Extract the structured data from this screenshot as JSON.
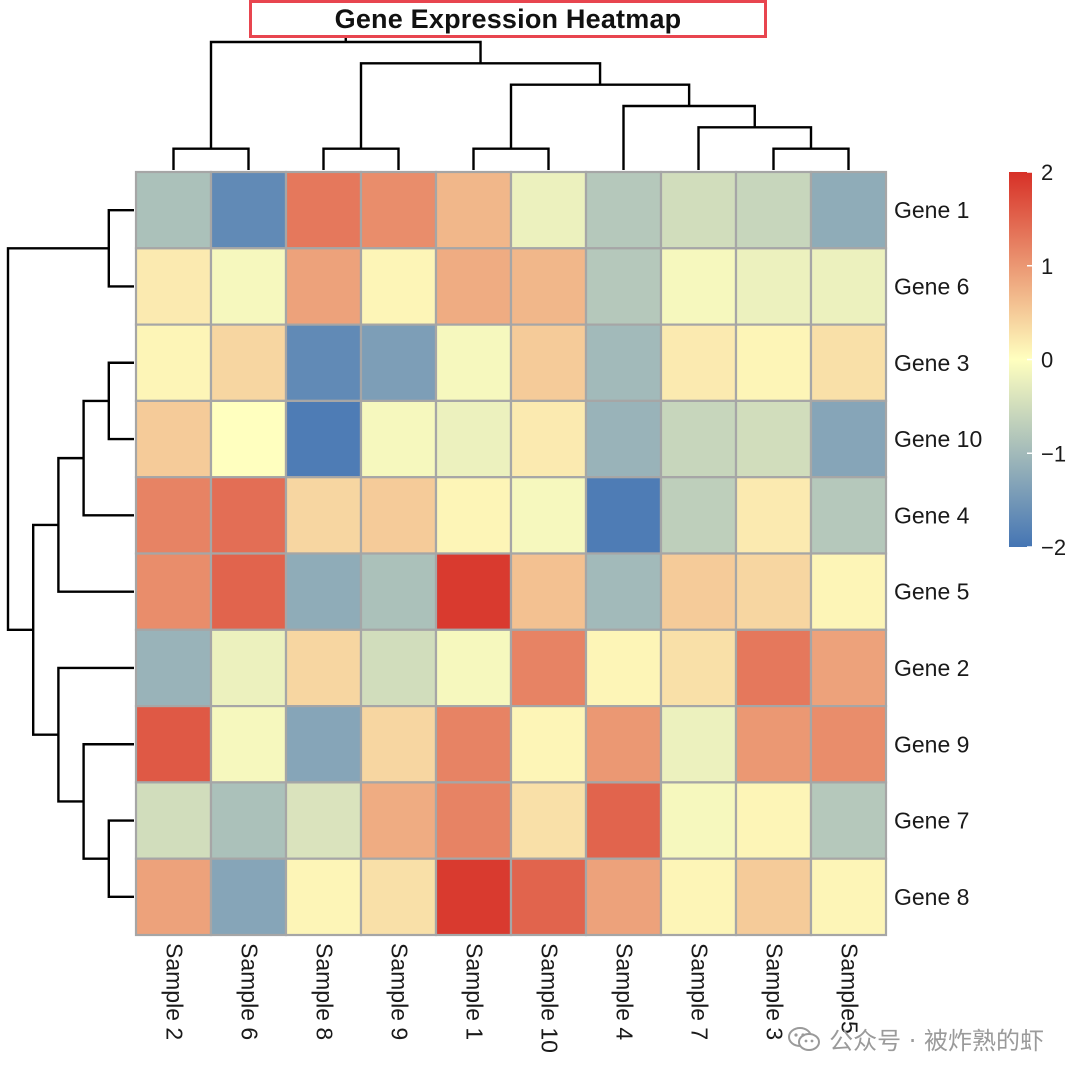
{
  "title": "Gene Expression Heatmap",
  "watermark": "公众号 · 被炸熟的虾",
  "chart_data": {
    "type": "heatmap",
    "title": "Gene Expression Heatmap",
    "columns": [
      "Sample 2",
      "Sample 6",
      "Sample 8",
      "Sample 9",
      "Sample 1",
      "Sample 10",
      "Sample 4",
      "Sample 7",
      "Sample 3",
      "Sample5"
    ],
    "rows": [
      "Gene 1",
      "Gene 6",
      "Gene 3",
      "Gene 10",
      "Gene 4",
      "Gene 5",
      "Gene 2",
      "Gene 9",
      "Gene 7",
      "Gene 8"
    ],
    "values": [
      [
        -0.9,
        -1.7,
        1.3,
        1.1,
        0.7,
        -0.2,
        -0.8,
        -0.5,
        -0.6,
        -1.2
      ],
      [
        0.2,
        -0.1,
        0.9,
        0.1,
        0.8,
        0.7,
        -0.8,
        -0.1,
        -0.2,
        -0.2
      ],
      [
        0.1,
        0.4,
        -1.7,
        -1.4,
        -0.1,
        0.5,
        -1.0,
        0.2,
        0.1,
        0.3
      ],
      [
        0.5,
        0.0,
        -1.9,
        -0.1,
        -0.2,
        0.2,
        -1.1,
        -0.6,
        -0.5,
        -1.3
      ],
      [
        1.2,
        1.4,
        0.4,
        0.5,
        0.1,
        -0.1,
        -1.9,
        -0.7,
        0.2,
        -0.8
      ],
      [
        1.1,
        1.5,
        -1.2,
        -0.9,
        1.9,
        0.6,
        -1.0,
        0.5,
        0.4,
        0.1
      ],
      [
        -1.1,
        -0.2,
        0.4,
        -0.5,
        -0.1,
        1.2,
        0.1,
        0.3,
        1.3,
        0.9
      ],
      [
        1.6,
        -0.1,
        -1.3,
        0.4,
        1.2,
        0.1,
        1.0,
        -0.2,
        1.0,
        1.1
      ],
      [
        -0.5,
        -0.9,
        -0.4,
        0.8,
        1.2,
        0.3,
        1.5,
        -0.1,
        0.1,
        -0.8
      ],
      [
        0.9,
        -1.3,
        0.1,
        0.3,
        1.9,
        1.5,
        0.9,
        0.1,
        0.5,
        0.1
      ]
    ],
    "color_scale": {
      "min": -2,
      "max": 2,
      "low_color": "#4575b4",
      "mid_color": "#ffffbf",
      "high_color": "#d73027",
      "ticks": [
        {
          "value": 2,
          "label": "2"
        },
        {
          "value": 1,
          "label": "1"
        },
        {
          "value": 0,
          "label": "0"
        },
        {
          "value": -1,
          "label": "−1"
        },
        {
          "value": -2,
          "label": "−2"
        }
      ]
    },
    "column_dendrogram": [
      [
        "Sample 2",
        "Sample 6"
      ],
      [
        [
          "Sample 8",
          "Sample 9"
        ],
        [
          [
            "Sample 1",
            "Sample 10"
          ],
          [
            "Sample 4",
            [
              "Sample 7",
              [
                "Sample 3",
                "Sample5"
              ]
            ]
          ]
        ]
      ]
    ],
    "row_dendrogram": [
      [
        "Gene 1",
        "Gene 6"
      ],
      [
        [
          [
            [
              "Gene 3",
              "Gene 10"
            ],
            "Gene 4"
          ],
          "Gene 5"
        ],
        [
          "Gene 2",
          [
            "Gene 9",
            [
              "Gene 7",
              "Gene 8"
            ]
          ]
        ]
      ]
    ],
    "colors": {
      "cell_border": "#a6a6a6",
      "dendrogram": "#000000",
      "title_border": "#e8454f"
    }
  }
}
